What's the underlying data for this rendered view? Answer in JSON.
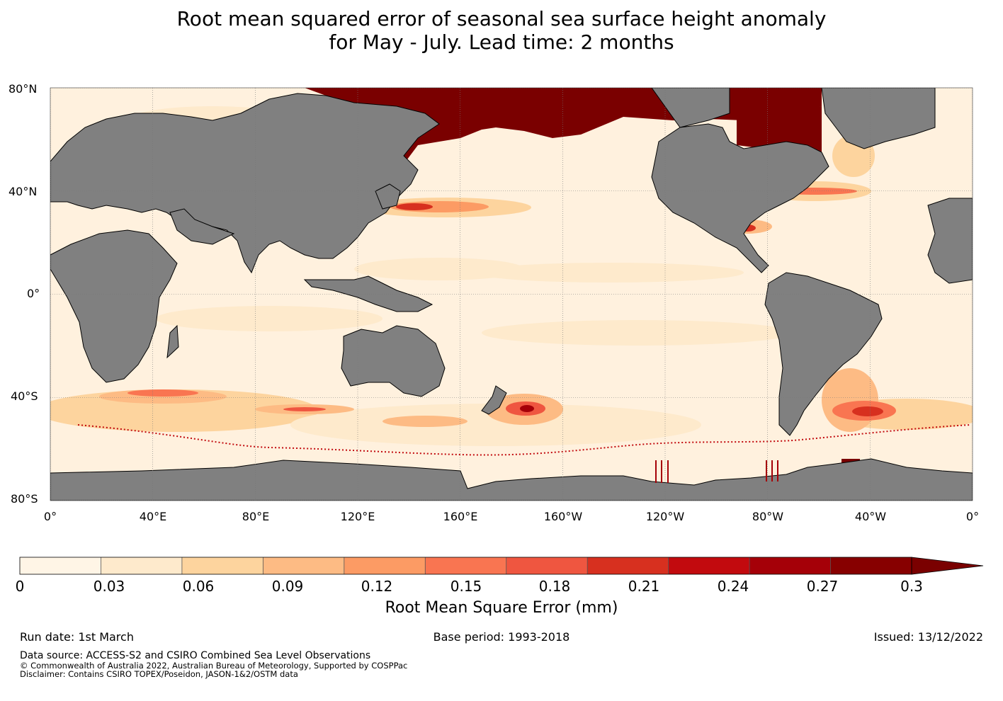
{
  "title": {
    "line1": "Root mean squared error of seasonal sea surface height anomaly",
    "line2": "for May - July. Lead time: 2 months"
  },
  "map": {
    "lat_labels": [
      "80°N",
      "40°N",
      "0°",
      "40°S",
      "80°S"
    ],
    "lon_labels": [
      "0°",
      "40°E",
      "80°E",
      "120°E",
      "160°E",
      "160°W",
      "120°W",
      "80°W",
      "40°W",
      "0°"
    ],
    "colors": {
      "ocean_base": "#fff1de",
      "land": "#808080",
      "coast": "#000000",
      "extreme": "#7a0000"
    }
  },
  "colorbar": {
    "title": "Root Mean Square Error (mm)",
    "ticks": [
      "0",
      "0.03",
      "0.06",
      "0.09",
      "0.12",
      "0.15",
      "0.18",
      "0.21",
      "0.24",
      "0.27",
      "0.3"
    ],
    "colors": [
      "#fff5e6",
      "#feeacc",
      "#fdd49e",
      "#fdbb84",
      "#fc9b64",
      "#f97551",
      "#ef5640",
      "#d7301f",
      "#c20a0e",
      "#a50008",
      "#870000",
      "#7a0000"
    ]
  },
  "footer": {
    "run_date": "Run date: 1st March",
    "base_period": "Base period: 1993-2018",
    "issued": "Issued: 13/12/2022",
    "data_source": "Data source: ACCESS-S2 and CSIRO Combined Sea Level Observations",
    "copyright": "© Commonwealth of Australia 2022, Australian Bureau of Meteorology, Supported by COSPPac",
    "disclaimer": "Disclaimer: Contains CSIRO TOPEX/Poseidon, JASON-1&2/OSTM data"
  }
}
